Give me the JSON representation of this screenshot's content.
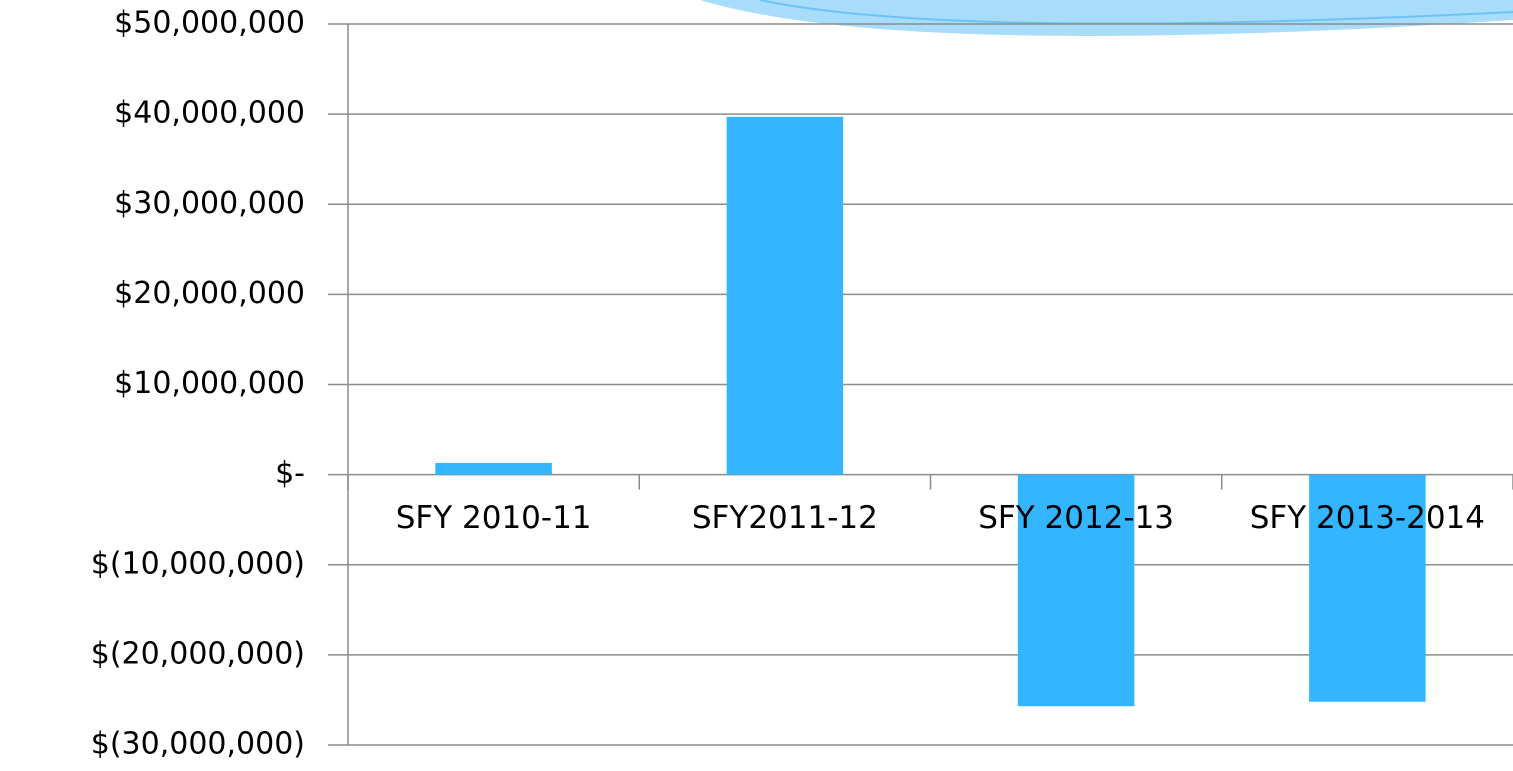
{
  "chart_data": {
    "type": "bar",
    "categories": [
      "SFY 2010-11",
      "SFY2011-12",
      "SFY 2012-13",
      "SFY 2013-2014"
    ],
    "values": [
      1300000,
      39700000,
      -25700000,
      -25200000
    ],
    "color": "#33b5ff",
    "ylim": [
      -30000000,
      50000000
    ],
    "yticks": [
      {
        "value": -30000000,
        "label": "$(30,000,000)"
      },
      {
        "value": -20000000,
        "label": "$(20,000,000)"
      },
      {
        "value": -10000000,
        "label": "$(10,000,000)"
      },
      {
        "value": 0,
        "label": "$-"
      },
      {
        "value": 10000000,
        "label": "$10,000,000"
      },
      {
        "value": 20000000,
        "label": "$20,000,000"
      },
      {
        "value": 30000000,
        "label": "$30,000,000"
      },
      {
        "value": 40000000,
        "label": "$40,000,000"
      },
      {
        "value": 50000000,
        "label": "$50,000,000"
      }
    ],
    "grid": true
  }
}
